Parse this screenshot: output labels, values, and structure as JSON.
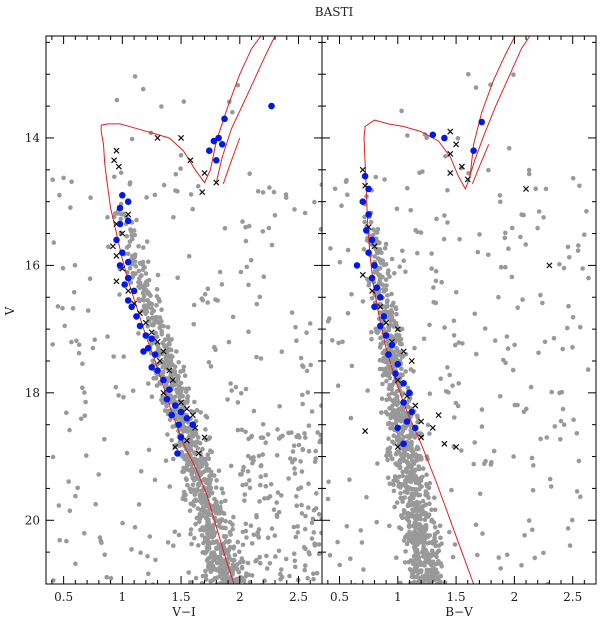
{
  "chart_data": {
    "type": "scatter",
    "title": "BASTI",
    "colors": {
      "field": "#999999",
      "members": "#0019e6",
      "crosses": "#111111",
      "isochrone": "#e02020"
    },
    "ylabel": "V",
    "ylim": [
      21,
      12.4
    ],
    "yticks": [
      14,
      16,
      18,
      20
    ],
    "panels": [
      {
        "xlabel": "V−I",
        "xlim": [
          0.35,
          2.7
        ],
        "xticks": [
          0.5,
          1,
          1.5,
          2,
          2.5
        ],
        "xtick_labels": [
          "0.5",
          "1",
          "1.5",
          "2",
          "2.5"
        ],
        "isochrone": [
          [
            1.95,
            21.0
          ],
          [
            1.88,
            20.6
          ],
          [
            1.8,
            20.1
          ],
          [
            1.72,
            19.6
          ],
          [
            1.63,
            19.2
          ],
          [
            1.52,
            18.8
          ],
          [
            1.42,
            18.3
          ],
          [
            1.35,
            17.9
          ],
          [
            1.28,
            17.5
          ],
          [
            1.2,
            17.1
          ],
          [
            1.13,
            16.7
          ],
          [
            1.06,
            16.3
          ],
          [
            1.0,
            15.9
          ],
          [
            0.95,
            15.5
          ],
          [
            0.9,
            15.1
          ],
          [
            0.87,
            14.7
          ],
          [
            0.85,
            14.4
          ],
          [
            0.84,
            14.1
          ],
          [
            0.82,
            13.9
          ],
          [
            0.82,
            13.8
          ],
          [
            0.88,
            13.78
          ],
          [
            0.98,
            13.78
          ],
          [
            1.1,
            13.84
          ],
          [
            1.25,
            13.92
          ],
          [
            1.4,
            14.0
          ],
          [
            1.52,
            14.2
          ],
          [
            1.62,
            14.5
          ],
          [
            1.7,
            14.7
          ],
          [
            1.75,
            14.5
          ],
          [
            1.8,
            14.05
          ],
          [
            1.9,
            13.5
          ],
          [
            2.0,
            13.0
          ],
          [
            2.1,
            12.6
          ],
          [
            2.2,
            12.35
          ]
        ],
        "isochrone_branches": [
          [
            [
              1.8,
              14.7
            ],
            [
              1.85,
              14.3
            ],
            [
              1.93,
              13.85
            ],
            [
              2.02,
              13.5
            ],
            [
              2.12,
              13.1
            ],
            [
              2.22,
              12.7
            ],
            [
              2.3,
              12.4
            ]
          ],
          [
            [
              1.86,
              14.72
            ],
            [
              1.92,
              14.4
            ],
            [
              2.0,
              14.0
            ]
          ]
        ],
        "members": [
          [
            2.27,
            13.5
          ],
          [
            1.87,
            13.7
          ],
          [
            1.82,
            14.0
          ],
          [
            1.78,
            14.05
          ],
          [
            1.85,
            14.1
          ],
          [
            1.74,
            14.2
          ],
          [
            1.8,
            14.35
          ],
          [
            1.0,
            14.9
          ],
          [
            1.05,
            15.0
          ],
          [
            0.98,
            15.1
          ],
          [
            1.05,
            15.3
          ],
          [
            0.98,
            15.35
          ],
          [
            0.95,
            15.6
          ],
          [
            1.0,
            15.8
          ],
          [
            1.05,
            15.95
          ],
          [
            0.98,
            16.0
          ],
          [
            1.05,
            16.2
          ],
          [
            1.02,
            16.3
          ],
          [
            1.1,
            16.4
          ],
          [
            1.05,
            16.55
          ],
          [
            1.08,
            16.65
          ],
          [
            1.12,
            16.8
          ],
          [
            1.15,
            16.95
          ],
          [
            1.2,
            17.1
          ],
          [
            1.25,
            17.15
          ],
          [
            1.22,
            17.3
          ],
          [
            1.18,
            17.35
          ],
          [
            1.28,
            17.4
          ],
          [
            1.25,
            17.6
          ],
          [
            1.3,
            17.65
          ],
          [
            1.35,
            17.8
          ],
          [
            1.4,
            17.95
          ],
          [
            1.38,
            18.1
          ],
          [
            1.45,
            18.2
          ],
          [
            1.5,
            18.3
          ],
          [
            1.42,
            18.35
          ],
          [
            1.55,
            18.4
          ],
          [
            1.48,
            18.5
          ],
          [
            1.6,
            18.5
          ],
          [
            1.5,
            18.7
          ],
          [
            1.47,
            18.95
          ]
        ],
        "crosses": [
          [
            1.3,
            14.0
          ],
          [
            1.5,
            14.0
          ],
          [
            1.58,
            14.35
          ],
          [
            1.7,
            14.55
          ],
          [
            1.8,
            14.7
          ],
          [
            1.68,
            14.85
          ],
          [
            0.95,
            14.2
          ],
          [
            0.93,
            14.35
          ],
          [
            0.97,
            14.45
          ],
          [
            1.05,
            15.2
          ],
          [
            0.95,
            15.35
          ],
          [
            1.0,
            15.5
          ],
          [
            0.92,
            15.7
          ],
          [
            0.95,
            15.85
          ],
          [
            1.0,
            16.05
          ],
          [
            0.95,
            16.25
          ],
          [
            1.05,
            16.4
          ],
          [
            1.1,
            16.6
          ],
          [
            1.15,
            16.75
          ],
          [
            1.2,
            16.9
          ],
          [
            1.25,
            17.05
          ],
          [
            1.3,
            17.2
          ],
          [
            1.35,
            17.35
          ],
          [
            1.32,
            17.5
          ],
          [
            1.4,
            17.65
          ],
          [
            1.43,
            17.8
          ],
          [
            1.35,
            18.0
          ],
          [
            1.5,
            18.15
          ],
          [
            1.55,
            18.25
          ],
          [
            1.6,
            18.35
          ],
          [
            1.62,
            18.55
          ],
          [
            1.7,
            18.7
          ],
          [
            1.55,
            18.75
          ],
          [
            1.65,
            18.95
          ],
          [
            1.45,
            18.85
          ]
        ]
      },
      {
        "xlabel": "B−V",
        "xlim": [
          0.35,
          2.7
        ],
        "xticks": [
          0.5,
          1,
          1.5,
          2,
          2.5
        ],
        "xtick_labels": [
          "0.5",
          "1",
          "1.5",
          "2",
          "2.5"
        ],
        "isochrone": [
          [
            1.65,
            21.0
          ],
          [
            1.55,
            20.5
          ],
          [
            1.45,
            20.0
          ],
          [
            1.33,
            19.4
          ],
          [
            1.2,
            18.8
          ],
          [
            1.08,
            18.3
          ],
          [
            0.98,
            17.8
          ],
          [
            0.9,
            17.3
          ],
          [
            0.84,
            16.8
          ],
          [
            0.79,
            16.3
          ],
          [
            0.76,
            15.8
          ],
          [
            0.74,
            15.3
          ],
          [
            0.73,
            14.8
          ],
          [
            0.72,
            14.4
          ],
          [
            0.71,
            14.0
          ],
          [
            0.72,
            13.82
          ],
          [
            0.8,
            13.72
          ],
          [
            0.92,
            13.78
          ],
          [
            1.05,
            13.82
          ],
          [
            1.2,
            13.9
          ],
          [
            1.35,
            14.05
          ],
          [
            1.45,
            14.3
          ],
          [
            1.52,
            14.6
          ],
          [
            1.58,
            14.8
          ],
          [
            1.62,
            14.6
          ],
          [
            1.65,
            14.1
          ],
          [
            1.72,
            13.6
          ],
          [
            1.82,
            13.1
          ],
          [
            1.92,
            12.7
          ],
          [
            2.02,
            12.35
          ]
        ],
        "isochrone_branches": [
          [
            [
              1.6,
              14.7
            ],
            [
              1.66,
              14.35
            ],
            [
              1.74,
              13.95
            ],
            [
              1.84,
              13.5
            ],
            [
              1.95,
              13.05
            ],
            [
              2.06,
              12.6
            ],
            [
              2.15,
              12.35
            ]
          ],
          [
            [
              1.64,
              14.72
            ],
            [
              1.7,
              14.45
            ],
            [
              1.78,
              14.1
            ]
          ]
        ],
        "members": [
          [
            1.72,
            13.75
          ],
          [
            1.65,
            14.2
          ],
          [
            1.3,
            13.95
          ],
          [
            1.4,
            14.0
          ],
          [
            0.72,
            14.6
          ],
          [
            0.75,
            14.8
          ],
          [
            0.7,
            15.0
          ],
          [
            0.75,
            15.2
          ],
          [
            0.73,
            15.45
          ],
          [
            0.78,
            15.6
          ],
          [
            0.75,
            15.8
          ],
          [
            0.8,
            16.0
          ],
          [
            0.65,
            16.0
          ],
          [
            0.78,
            16.2
          ],
          [
            0.82,
            16.35
          ],
          [
            0.85,
            16.5
          ],
          [
            0.8,
            16.65
          ],
          [
            0.88,
            16.8
          ],
          [
            0.85,
            16.95
          ],
          [
            0.9,
            17.1
          ],
          [
            0.95,
            17.25
          ],
          [
            0.92,
            17.4
          ],
          [
            1.0,
            17.55
          ],
          [
            0.98,
            17.7
          ],
          [
            1.05,
            17.85
          ],
          [
            1.1,
            18.0
          ],
          [
            1.05,
            18.15
          ],
          [
            1.12,
            18.3
          ],
          [
            1.08,
            18.45
          ],
          [
            1.0,
            18.55
          ],
          [
            1.15,
            18.55
          ],
          [
            1.05,
            18.8
          ]
        ],
        "crosses": [
          [
            1.45,
            13.9
          ],
          [
            1.5,
            14.1
          ],
          [
            1.45,
            14.25
          ],
          [
            1.55,
            14.45
          ],
          [
            1.45,
            14.55
          ],
          [
            1.6,
            14.65
          ],
          [
            0.7,
            14.5
          ],
          [
            0.72,
            14.75
          ],
          [
            2.1,
            14.8
          ],
          [
            2.3,
            16.0
          ],
          [
            0.75,
            15.4
          ],
          [
            0.8,
            15.7
          ],
          [
            0.7,
            16.15
          ],
          [
            0.78,
            16.4
          ],
          [
            0.85,
            16.65
          ],
          [
            0.9,
            16.9
          ],
          [
            1.0,
            17.0
          ],
          [
            0.95,
            17.2
          ],
          [
            1.05,
            17.35
          ],
          [
            1.12,
            17.5
          ],
          [
            1.0,
            17.8
          ],
          [
            1.08,
            18.05
          ],
          [
            1.15,
            18.2
          ],
          [
            1.2,
            18.45
          ],
          [
            1.3,
            18.55
          ],
          [
            1.35,
            18.35
          ],
          [
            0.72,
            18.6
          ],
          [
            1.0,
            18.85
          ],
          [
            1.4,
            18.8
          ],
          [
            1.5,
            18.85
          ],
          [
            1.2,
            18.7
          ]
        ]
      }
    ]
  }
}
